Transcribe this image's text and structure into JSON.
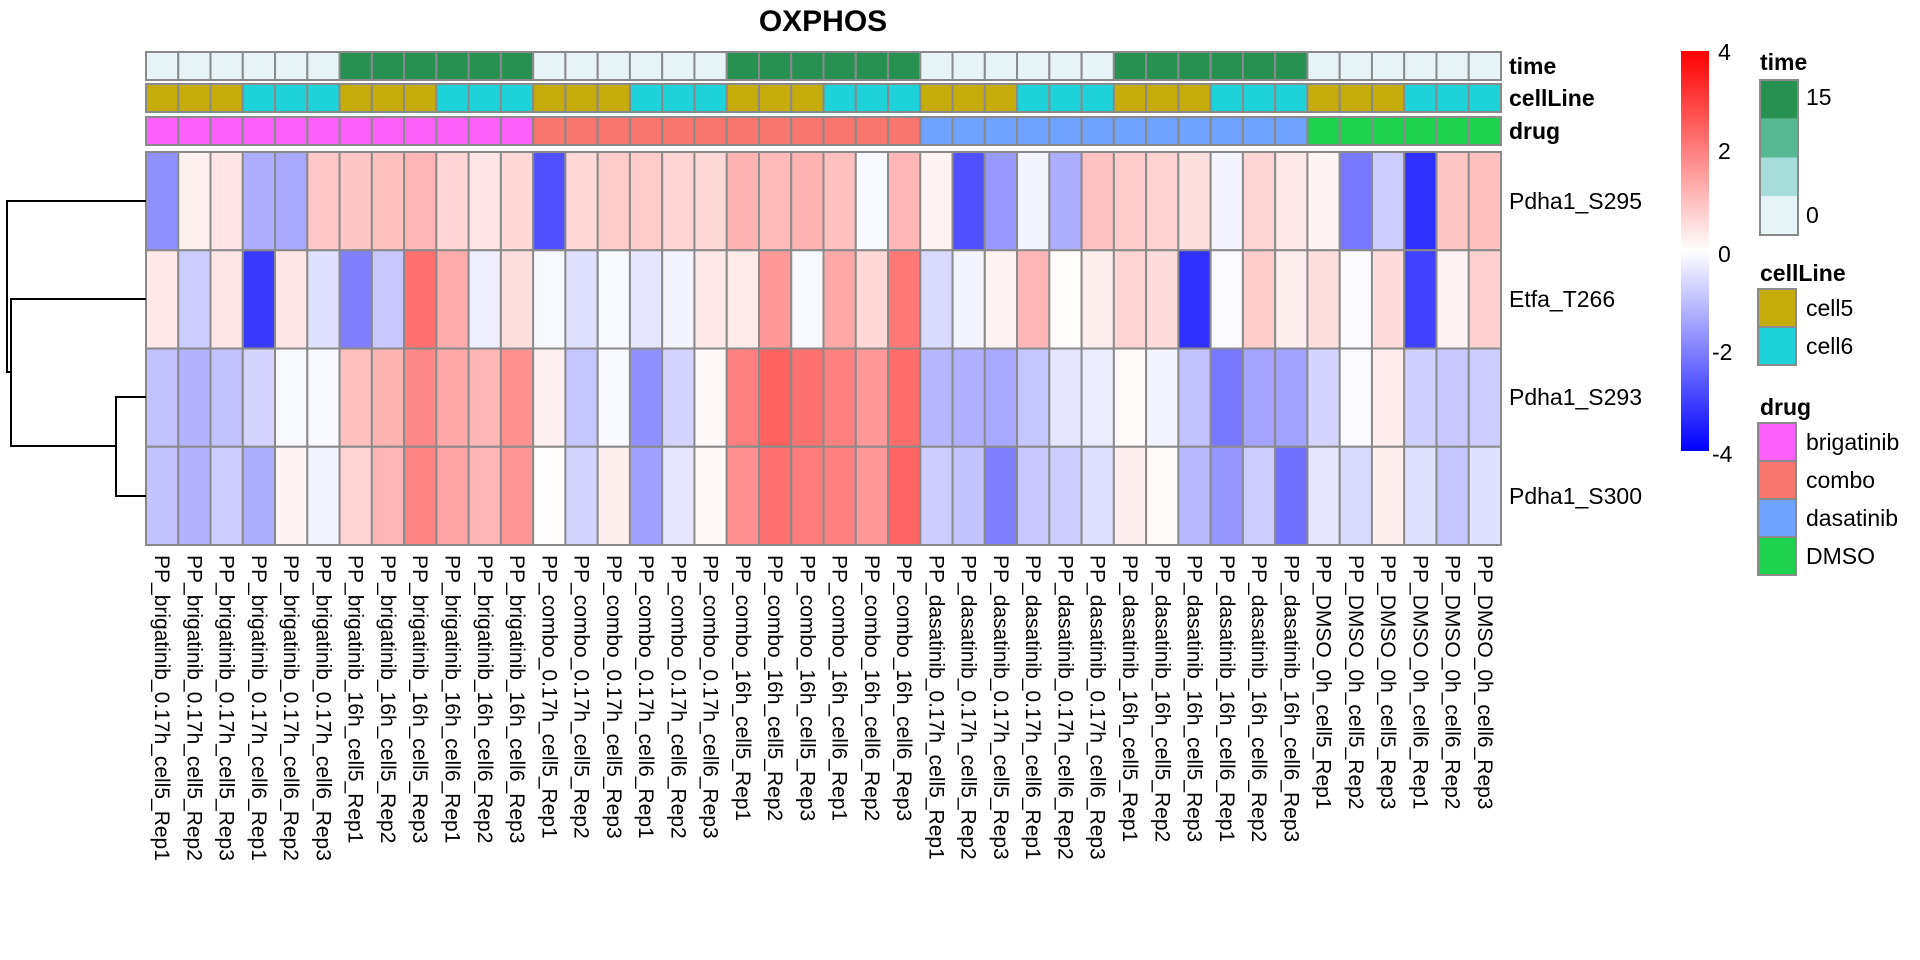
{
  "chart_data": {
    "type": "heatmap",
    "title": "OXPHOS",
    "rows": [
      "Pdha1_S295",
      "Etfa_T266",
      "Pdha1_S293",
      "Pdha1_S300"
    ],
    "columns": [
      "PP_brigatinib_0.17h_cell5_Rep1",
      "PP_brigatinib_0.17h_cell5_Rep2",
      "PP_brigatinib_0.17h_cell5_Rep3",
      "PP_brigatinib_0.17h_cell6_Rep1",
      "PP_brigatinib_0.17h_cell6_Rep2",
      "PP_brigatinib_0.17h_cell6_Rep3",
      "PP_brigatinib_16h_cell5_Rep1",
      "PP_brigatinib_16h_cell5_Rep2",
      "PP_brigatinib_16h_cell5_Rep3",
      "PP_brigatinib_16h_cell6_Rep1",
      "PP_brigatinib_16h_cell6_Rep2",
      "PP_brigatinib_16h_cell6_Rep3",
      "PP_combo_0.17h_cell5_Rep1",
      "PP_combo_0.17h_cell5_Rep2",
      "PP_combo_0.17h_cell5_Rep3",
      "PP_combo_0.17h_cell6_Rep1",
      "PP_combo_0.17h_cell6_Rep2",
      "PP_combo_0.17h_cell6_Rep3",
      "PP_combo_16h_cell5_Rep1",
      "PP_combo_16h_cell5_Rep2",
      "PP_combo_16h_cell5_Rep3",
      "PP_combo_16h_cell6_Rep1",
      "PP_combo_16h_cell6_Rep2",
      "PP_combo_16h_cell6_Rep3",
      "PP_dasatinib_0.17h_cell5_Rep1",
      "PP_dasatinib_0.17h_cell5_Rep2",
      "PP_dasatinib_0.17h_cell5_Rep3",
      "PP_dasatinib_0.17h_cell6_Rep1",
      "PP_dasatinib_0.17h_cell6_Rep2",
      "PP_dasatinib_0.17h_cell6_Rep3",
      "PP_dasatinib_16h_cell5_Rep1",
      "PP_dasatinib_16h_cell5_Rep2",
      "PP_dasatinib_16h_cell5_Rep3",
      "PP_dasatinib_16h_cell6_Rep1",
      "PP_dasatinib_16h_cell6_Rep2",
      "PP_dasatinib_16h_cell6_Rep3",
      "PP_DMSO_0h_cell5_Rep1",
      "PP_DMSO_0h_cell5_Rep2",
      "PP_DMSO_0h_cell5_Rep3",
      "PP_DMSO_0h_cell6_Rep1",
      "PP_DMSO_0h_cell6_Rep2",
      "PP_DMSO_0h_cell6_Rep3"
    ],
    "values": [
      [
        -1.74,
        0.24,
        0.41,
        -1.27,
        -1.36,
        0.86,
        0.89,
        0.99,
        1.14,
        0.66,
        0.41,
        0.61,
        -2.75,
        0.61,
        0.8,
        0.8,
        0.67,
        0.61,
        1.18,
        1.08,
        1.21,
        0.99,
        -0.11,
        1.14,
        0.2,
        -2.75,
        -1.61,
        -0.17,
        -1.27,
        0.96,
        0.8,
        0.71,
        0.52,
        -0.17,
        0.64,
        0.36,
        0.17,
        -2.12,
        -0.8,
        -3.25,
        0.89,
        0.99
      ],
      [
        0.36,
        -0.8,
        0.39,
        -3.09,
        0.39,
        -0.49,
        -1.99,
        -0.86,
        2.24,
        1.3,
        -0.27,
        0.52,
        -0.11,
        -0.49,
        -0.11,
        -0.39,
        -0.17,
        0.36,
        0.33,
        1.61,
        -0.11,
        1.36,
        0.61,
        2.12,
        -0.58,
        -0.17,
        0.2,
        1.14,
        0.05,
        0.27,
        0.67,
        0.55,
        -3.25,
        -0.08,
        0.8,
        0.27,
        0.52,
        -0.08,
        0.55,
        -3.0,
        0.2,
        0.74
      ],
      [
        -0.96,
        -1.21,
        -0.96,
        -0.67,
        -0.11,
        -0.11,
        0.99,
        1.18,
        1.86,
        1.36,
        1.14,
        1.74,
        0.24,
        -0.89,
        -0.11,
        -1.74,
        -0.67,
        0.11,
        1.99,
        2.49,
        2.24,
        1.99,
        1.61,
        2.31,
        -1.14,
        -1.24,
        -1.36,
        -0.89,
        -0.39,
        -0.3,
        0.08,
        -0.17,
        -0.96,
        -2.12,
        -1.43,
        -1.46,
        -0.67,
        -0.08,
        0.3,
        -0.74,
        -0.86,
        -0.8
      ],
      [
        -0.96,
        -1.21,
        -0.8,
        -1.27,
        0.17,
        -0.17,
        0.67,
        1.14,
        1.93,
        1.43,
        1.14,
        1.68,
        0.05,
        -0.67,
        0.27,
        -1.49,
        -0.39,
        0.11,
        1.74,
        2.24,
        2.05,
        1.99,
        1.61,
        2.43,
        -0.8,
        -0.96,
        -1.99,
        -0.86,
        -0.8,
        -0.49,
        0.27,
        0.08,
        -1.11,
        -1.65,
        -0.8,
        -2.24,
        -0.39,
        -0.58,
        0.27,
        -0.49,
        -0.89,
        -0.49
      ]
    ],
    "annotations": {
      "time": [
        0,
        0,
        0,
        0,
        0,
        0,
        15,
        15,
        15,
        15,
        15,
        15,
        0,
        0,
        0,
        0,
        0,
        0,
        15,
        15,
        15,
        15,
        15,
        15,
        0,
        0,
        0,
        0,
        0,
        0,
        15,
        15,
        15,
        15,
        15,
        15,
        0,
        0,
        0,
        0,
        0,
        0
      ],
      "cellLine": [
        "cell5",
        "cell5",
        "cell5",
        "cell6",
        "cell6",
        "cell6",
        "cell5",
        "cell5",
        "cell5",
        "cell6",
        "cell6",
        "cell6",
        "cell5",
        "cell5",
        "cell5",
        "cell6",
        "cell6",
        "cell6",
        "cell5",
        "cell5",
        "cell5",
        "cell6",
        "cell6",
        "cell6",
        "cell5",
        "cell5",
        "cell5",
        "cell6",
        "cell6",
        "cell6",
        "cell5",
        "cell5",
        "cell5",
        "cell6",
        "cell6",
        "cell6",
        "cell5",
        "cell5",
        "cell5",
        "cell6",
        "cell6",
        "cell6"
      ],
      "drug": [
        "brigatinib",
        "brigatinib",
        "brigatinib",
        "brigatinib",
        "brigatinib",
        "brigatinib",
        "brigatinib",
        "brigatinib",
        "brigatinib",
        "brigatinib",
        "brigatinib",
        "brigatinib",
        "combo",
        "combo",
        "combo",
        "combo",
        "combo",
        "combo",
        "combo",
        "combo",
        "combo",
        "combo",
        "combo",
        "combo",
        "dasatinib",
        "dasatinib",
        "dasatinib",
        "dasatinib",
        "dasatinib",
        "dasatinib",
        "dasatinib",
        "dasatinib",
        "dasatinib",
        "dasatinib",
        "dasatinib",
        "dasatinib",
        "DMSO",
        "DMSO",
        "DMSO",
        "DMSO",
        "DMSO",
        "DMSO"
      ]
    },
    "annotation_labels": [
      "time",
      "cellLine",
      "drug"
    ],
    "row_dendrogram": {
      "order": [
        "Pdha1_S295",
        "Etfa_T266",
        "Pdha1_S293",
        "Pdha1_S300"
      ],
      "merges": [
        {
          "left": "Pdha1_S293",
          "right": "Pdha1_S300",
          "height": 0.21
        },
        {
          "left": "Etfa_T266",
          "right": "node1",
          "height": 0.97
        },
        {
          "left": "Pdha1_S295",
          "right": "node2",
          "height": 1.0
        }
      ]
    },
    "color_scale": {
      "min": -4,
      "mid": 0,
      "max": 4,
      "low_color": "#0000FF",
      "mid_color": "#FFFFFF",
      "high_color": "#FF0000",
      "ticks": [
        "4",
        "2",
        "0",
        "-2",
        "-4"
      ],
      "tick_values": [
        4,
        2,
        0,
        -2,
        -4
      ]
    },
    "legends": {
      "time": {
        "title": "time",
        "colors": [
          "#269150",
          "#56B892",
          "#A6DCD9",
          "#E6F4F8"
        ],
        "labels": [
          "15",
          "0"
        ],
        "range": [
          0,
          15
        ]
      },
      "cellLine": {
        "title": "cellLine",
        "items": [
          {
            "label": "cell5",
            "color": "#C6AC0A"
          },
          {
            "label": "cell6",
            "color": "#1DD2D8"
          }
        ]
      },
      "drug": {
        "title": "drug",
        "items": [
          {
            "label": "brigatinib",
            "color": "#FB61FA"
          },
          {
            "label": "combo",
            "color": "#F8766D"
          },
          {
            "label": "dasatinib",
            "color": "#6FA3FF"
          },
          {
            "label": "DMSO",
            "color": "#1FD24D"
          }
        ]
      }
    },
    "time_colors": {
      "0": "#E6F4F8",
      "15": "#269150"
    }
  }
}
